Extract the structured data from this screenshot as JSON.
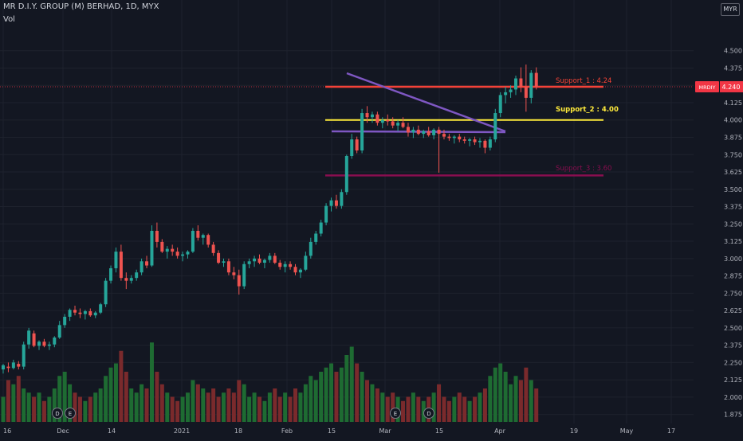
{
  "header": {
    "symbol_title": "MR D.I.Y. GROUP (M) BERHAD, 1D, MYX",
    "volume_label": "Vol",
    "currency": "MYR"
  },
  "colors": {
    "background": "#131722",
    "up": "#26a69a",
    "down": "#ef5350",
    "vol_up": "#1e6b32",
    "vol_down": "#7a2a2c",
    "grid": "#1e222d",
    "axis_text": "#b2b5be",
    "support_1": "#f44336",
    "support_2": "#ffeb3b",
    "support_3": "#880e4f",
    "triangle": "#7e57c2",
    "price_tag": "#f23645"
  },
  "chart_data": {
    "type": "candlestick",
    "y_axis": {
      "ticks": [
        "4.500",
        "4.375",
        "4.250",
        "4.125",
        "4.000",
        "3.875",
        "3.750",
        "3.625",
        "3.500",
        "3.375",
        "3.250",
        "3.125",
        "3.000",
        "2.875",
        "2.750",
        "2.625",
        "2.500",
        "2.375",
        "2.250",
        "2.125",
        "2.000",
        "1.875"
      ],
      "ylim": [
        1.85,
        4.55
      ]
    },
    "x_axis": {
      "ticks": [
        "16",
        "Dec",
        "14",
        "2021",
        "18",
        "Feb",
        "15",
        "Mar",
        "15",
        "Apr",
        "19",
        "May",
        "17"
      ]
    },
    "last_price": {
      "symbol": "MRDIY",
      "value": "4.240"
    },
    "annotations": [
      {
        "label": "Support_1 : 4.24",
        "price": 4.24
      },
      {
        "label": "Support_2 : 4.00",
        "price": 4.0
      },
      {
        "label": "Support_3 : 3.60",
        "price": 3.6
      }
    ],
    "event_markers": [
      "D",
      "E",
      "E",
      "D"
    ],
    "candles": [
      [
        2.2,
        2.24,
        2.17,
        2.23
      ],
      [
        2.22,
        2.25,
        2.18,
        2.21
      ],
      [
        2.21,
        2.27,
        2.2,
        2.25
      ],
      [
        2.24,
        2.26,
        2.2,
        2.22
      ],
      [
        2.22,
        2.4,
        2.2,
        2.38
      ],
      [
        2.38,
        2.5,
        2.35,
        2.48
      ],
      [
        2.46,
        2.48,
        2.36,
        2.37
      ],
      [
        2.37,
        2.41,
        2.34,
        2.4
      ],
      [
        2.4,
        2.42,
        2.36,
        2.37
      ],
      [
        2.37,
        2.4,
        2.34,
        2.38
      ],
      [
        2.38,
        2.44,
        2.36,
        2.43
      ],
      [
        2.43,
        2.55,
        2.42,
        2.52
      ],
      [
        2.52,
        2.6,
        2.5,
        2.58
      ],
      [
        2.58,
        2.64,
        2.55,
        2.63
      ],
      [
        2.63,
        2.66,
        2.59,
        2.61
      ],
      [
        2.61,
        2.64,
        2.57,
        2.6
      ],
      [
        2.6,
        2.63,
        2.56,
        2.62
      ],
      [
        2.62,
        2.64,
        2.58,
        2.59
      ],
      [
        2.59,
        2.62,
        2.57,
        2.61
      ],
      [
        2.61,
        2.68,
        2.6,
        2.67
      ],
      [
        2.67,
        2.86,
        2.65,
        2.84
      ],
      [
        2.84,
        2.95,
        2.82,
        2.93
      ],
      [
        2.93,
        3.08,
        2.9,
        3.05
      ],
      [
        3.05,
        3.1,
        2.84,
        2.86
      ],
      [
        2.86,
        2.9,
        2.78,
        2.84
      ],
      [
        2.84,
        2.88,
        2.82,
        2.86
      ],
      [
        2.86,
        2.92,
        2.84,
        2.9
      ],
      [
        2.9,
        3.0,
        2.88,
        2.98
      ],
      [
        2.98,
        3.02,
        2.93,
        2.95
      ],
      [
        2.95,
        3.24,
        2.94,
        3.2
      ],
      [
        3.2,
        3.26,
        3.08,
        3.12
      ],
      [
        3.12,
        3.14,
        3.04,
        3.05
      ],
      [
        3.05,
        3.09,
        3.0,
        3.07
      ],
      [
        3.07,
        3.1,
        3.02,
        3.05
      ],
      [
        3.05,
        3.08,
        3.0,
        3.02
      ],
      [
        3.02,
        3.05,
        2.98,
        3.03
      ],
      [
        3.03,
        3.06,
        3.0,
        3.05
      ],
      [
        3.05,
        3.22,
        3.04,
        3.2
      ],
      [
        3.2,
        3.24,
        3.13,
        3.15
      ],
      [
        3.15,
        3.18,
        3.1,
        3.17
      ],
      [
        3.17,
        3.18,
        3.08,
        3.1
      ],
      [
        3.1,
        3.12,
        3.02,
        3.04
      ],
      [
        3.04,
        3.06,
        2.96,
        2.97
      ],
      [
        2.97,
        3.0,
        2.94,
        2.98
      ],
      [
        2.98,
        3.0,
        2.88,
        2.9
      ],
      [
        2.9,
        2.94,
        2.85,
        2.88
      ],
      [
        2.88,
        2.92,
        2.74,
        2.8
      ],
      [
        2.8,
        2.98,
        2.78,
        2.96
      ],
      [
        2.96,
        3.0,
        2.93,
        2.98
      ],
      [
        2.98,
        3.02,
        2.94,
        3.0
      ],
      [
        3.0,
        3.03,
        2.96,
        2.97
      ],
      [
        2.97,
        3.0,
        2.93,
        2.99
      ],
      [
        2.99,
        3.04,
        2.97,
        3.02
      ],
      [
        3.02,
        3.04,
        2.96,
        2.97
      ],
      [
        2.97,
        2.99,
        2.92,
        2.94
      ],
      [
        2.94,
        2.98,
        2.9,
        2.96
      ],
      [
        2.96,
        2.98,
        2.92,
        2.94
      ],
      [
        2.94,
        2.96,
        2.88,
        2.9
      ],
      [
        2.9,
        2.93,
        2.86,
        2.92
      ],
      [
        2.92,
        3.05,
        2.91,
        3.02
      ],
      [
        3.02,
        3.15,
        3.0,
        3.12
      ],
      [
        3.12,
        3.2,
        3.1,
        3.18
      ],
      [
        3.18,
        3.28,
        3.16,
        3.26
      ],
      [
        3.26,
        3.4,
        3.24,
        3.38
      ],
      [
        3.38,
        3.44,
        3.34,
        3.42
      ],
      [
        3.42,
        3.46,
        3.36,
        3.38
      ],
      [
        3.38,
        3.5,
        3.36,
        3.48
      ],
      [
        3.48,
        3.75,
        3.46,
        3.74
      ],
      [
        3.74,
        3.9,
        3.72,
        3.86
      ],
      [
        3.86,
        3.88,
        3.76,
        3.78
      ],
      [
        3.78,
        4.08,
        3.76,
        4.05
      ],
      [
        4.05,
        4.1,
        3.98,
        4.02
      ],
      [
        4.02,
        4.06,
        3.98,
        4.04
      ],
      [
        4.04,
        4.06,
        3.96,
        3.98
      ],
      [
        3.98,
        4.02,
        3.94,
        4.0
      ],
      [
        4.0,
        4.04,
        3.96,
        3.99
      ],
      [
        3.99,
        4.02,
        3.94,
        3.96
      ],
      [
        3.96,
        4.0,
        3.92,
        3.98
      ],
      [
        3.98,
        4.02,
        3.94,
        3.95
      ],
      [
        3.95,
        3.98,
        3.88,
        3.91
      ],
      [
        3.91,
        3.95,
        3.87,
        3.93
      ],
      [
        3.93,
        3.96,
        3.89,
        3.9
      ],
      [
        3.9,
        3.93,
        3.87,
        3.92
      ],
      [
        3.92,
        3.95,
        3.88,
        3.89
      ],
      [
        3.89,
        3.94,
        3.86,
        3.93
      ],
      [
        3.93,
        3.95,
        3.62,
        3.9
      ],
      [
        3.9,
        3.93,
        3.86,
        3.88
      ],
      [
        3.88,
        3.9,
        3.85,
        3.87
      ],
      [
        3.87,
        3.89,
        3.83,
        3.88
      ],
      [
        3.88,
        3.9,
        3.84,
        3.86
      ],
      [
        3.86,
        3.88,
        3.83,
        3.85
      ],
      [
        3.85,
        3.87,
        3.81,
        3.86
      ],
      [
        3.86,
        3.88,
        3.82,
        3.84
      ],
      [
        3.84,
        3.87,
        3.8,
        3.85
      ],
      [
        3.85,
        3.86,
        3.76,
        3.8
      ],
      [
        3.8,
        3.88,
        3.78,
        3.86
      ],
      [
        3.86,
        4.08,
        3.84,
        4.05
      ],
      [
        4.05,
        4.2,
        4.02,
        4.18
      ],
      [
        4.18,
        4.24,
        4.12,
        4.2
      ],
      [
        4.2,
        4.25,
        4.16,
        4.22
      ],
      [
        4.22,
        4.32,
        4.18,
        4.3
      ],
      [
        4.3,
        4.38,
        4.2,
        4.24
      ],
      [
        4.24,
        4.4,
        4.06,
        4.16
      ],
      [
        4.16,
        4.36,
        4.12,
        4.34
      ],
      [
        4.34,
        4.38,
        4.22,
        4.24
      ]
    ],
    "volumes": [
      0.3,
      0.5,
      0.45,
      0.55,
      0.4,
      0.35,
      0.3,
      0.35,
      0.25,
      0.3,
      0.4,
      0.55,
      0.6,
      0.45,
      0.35,
      0.3,
      0.25,
      0.3,
      0.35,
      0.4,
      0.55,
      0.65,
      0.7,
      0.85,
      0.6,
      0.4,
      0.35,
      0.45,
      0.4,
      0.95,
      0.6,
      0.45,
      0.35,
      0.3,
      0.25,
      0.3,
      0.35,
      0.5,
      0.45,
      0.4,
      0.35,
      0.4,
      0.3,
      0.35,
      0.4,
      0.35,
      0.5,
      0.45,
      0.3,
      0.35,
      0.3,
      0.25,
      0.35,
      0.4,
      0.3,
      0.35,
      0.3,
      0.4,
      0.35,
      0.45,
      0.55,
      0.5,
      0.6,
      0.65,
      0.7,
      0.6,
      0.65,
      0.8,
      0.9,
      0.7,
      0.6,
      0.5,
      0.45,
      0.4,
      0.35,
      0.3,
      0.35,
      0.3,
      0.25,
      0.3,
      0.35,
      0.3,
      0.25,
      0.3,
      0.35,
      0.45,
      0.3,
      0.25,
      0.3,
      0.35,
      0.3,
      0.25,
      0.3,
      0.35,
      0.4,
      0.55,
      0.65,
      0.7,
      0.6,
      0.45,
      0.55,
      0.5,
      0.65,
      0.5,
      0.4
    ]
  }
}
